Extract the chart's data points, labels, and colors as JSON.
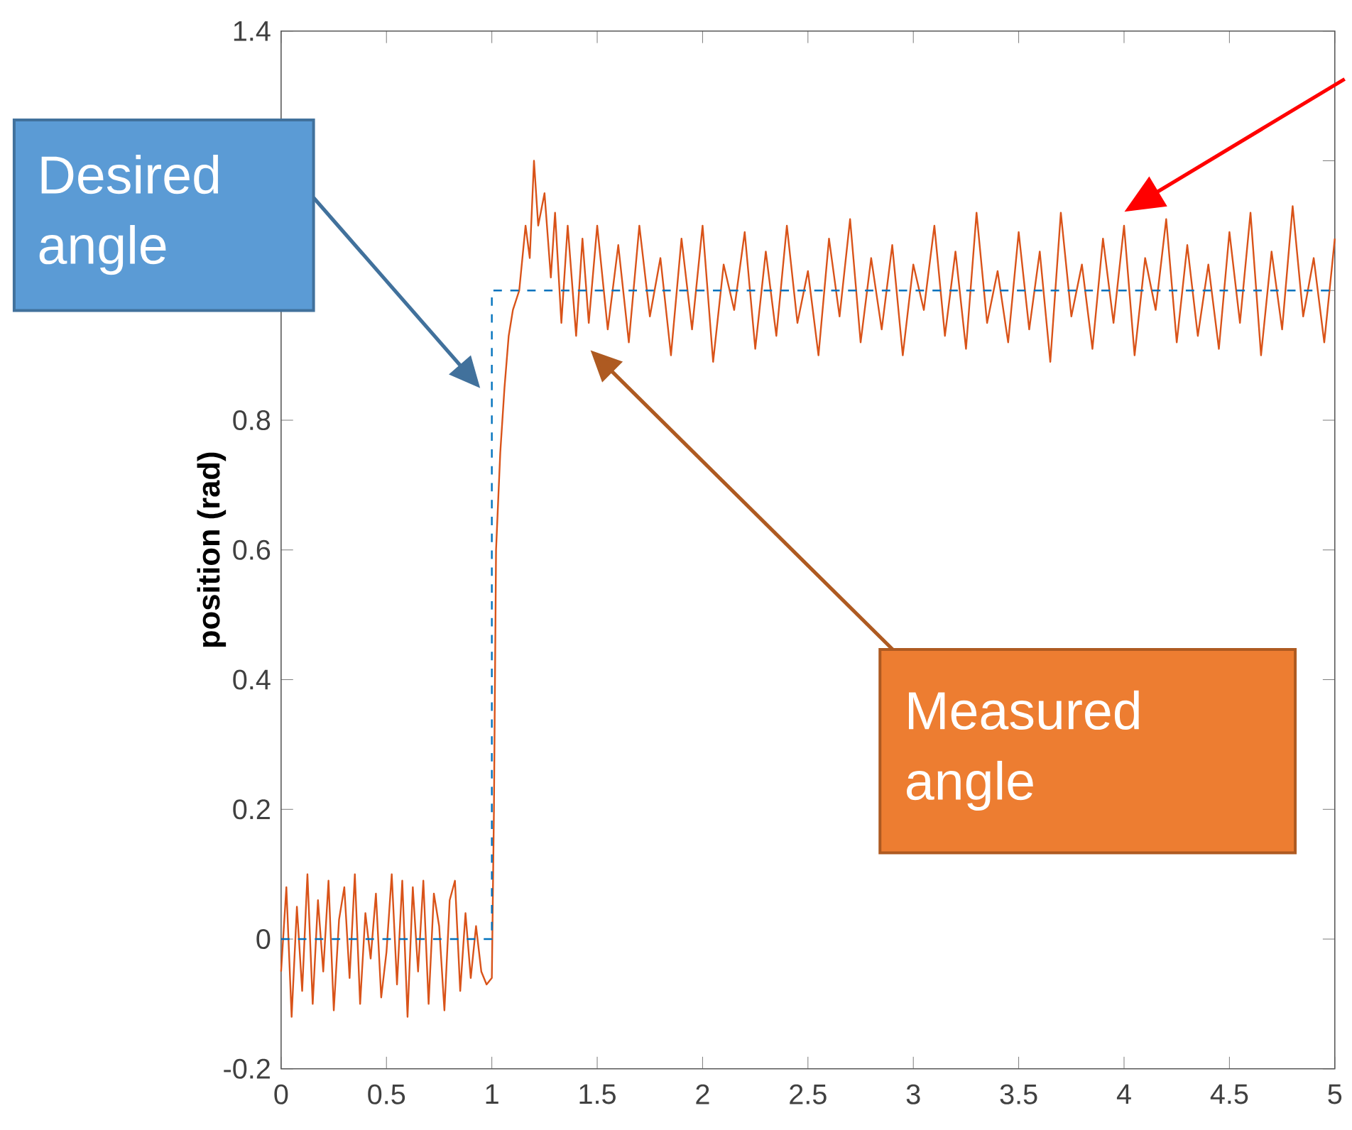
{
  "chart_data": {
    "type": "line",
    "ylabel": "position (rad)",
    "xlim": [
      0,
      5
    ],
    "ylim": [
      -0.2,
      1.4
    ],
    "xticks": [
      0,
      0.5,
      1,
      1.5,
      2,
      2.5,
      3,
      3.5,
      4,
      4.5,
      5
    ],
    "yticks": [
      -0.2,
      0,
      0.2,
      0.4,
      0.6,
      0.8,
      {
        "value": 1,
        "label": null
      },
      {
        "value": 1.2,
        "label": null
      },
      1.4
    ],
    "grid": false,
    "marker": "none",
    "series": [
      {
        "color": "#d95319",
        "line_style": "solid",
        "x": [
          0,
          0.025,
          0.05,
          0.075,
          0.1,
          0.125,
          0.15,
          0.175,
          0.2,
          0.225,
          0.25,
          0.275,
          0.3,
          0.325,
          0.35,
          0.375,
          0.4,
          0.425,
          0.45,
          0.475,
          0.5,
          0.525,
          0.55,
          0.575,
          0.6,
          0.625,
          0.65,
          0.675,
          0.7,
          0.725,
          0.75,
          0.775,
          0.8,
          0.825,
          0.85,
          0.875,
          0.9,
          0.925,
          0.95,
          0.975,
          1.0,
          1.01,
          1.02,
          1.04,
          1.06,
          1.08,
          1.1,
          1.13,
          1.16,
          1.18,
          1.2,
          1.22,
          1.25,
          1.28,
          1.3,
          1.33,
          1.36,
          1.4,
          1.43,
          1.46,
          1.5,
          1.55,
          1.6,
          1.65,
          1.7,
          1.75,
          1.8,
          1.85,
          1.9,
          1.95,
          2.0,
          2.05,
          2.1,
          2.15,
          2.2,
          2.25,
          2.3,
          2.35,
          2.4,
          2.45,
          2.5,
          2.55,
          2.6,
          2.65,
          2.7,
          2.75,
          2.8,
          2.85,
          2.9,
          2.95,
          3.0,
          3.05,
          3.1,
          3.15,
          3.2,
          3.25,
          3.3,
          3.35,
          3.4,
          3.45,
          3.5,
          3.55,
          3.6,
          3.65,
          3.7,
          3.75,
          3.8,
          3.85,
          3.9,
          3.95,
          4.0,
          4.05,
          4.1,
          4.15,
          4.2,
          4.25,
          4.3,
          4.35,
          4.4,
          4.45,
          4.5,
          4.55,
          4.6,
          4.65,
          4.7,
          4.75,
          4.8,
          4.85,
          4.9,
          4.95,
          5.0
        ],
        "values": [
          -0.05,
          0.08,
          -0.12,
          0.05,
          -0.08,
          0.1,
          -0.1,
          0.06,
          -0.05,
          0.09,
          -0.11,
          0.03,
          0.08,
          -0.06,
          0.1,
          -0.1,
          0.04,
          -0.03,
          0.07,
          -0.09,
          -0.02,
          0.1,
          -0.07,
          0.09,
          -0.12,
          0.08,
          -0.05,
          0.09,
          -0.1,
          0.07,
          0.02,
          -0.11,
          0.06,
          0.09,
          -0.08,
          0.04,
          -0.06,
          0.02,
          -0.05,
          -0.07,
          -0.06,
          0.2,
          0.6,
          0.75,
          0.85,
          0.93,
          0.97,
          1.0,
          1.1,
          1.05,
          1.2,
          1.1,
          1.15,
          1.02,
          1.12,
          0.95,
          1.1,
          0.93,
          1.08,
          0.95,
          1.1,
          0.94,
          1.07,
          0.92,
          1.1,
          0.96,
          1.05,
          0.9,
          1.08,
          0.94,
          1.1,
          0.89,
          1.04,
          0.97,
          1.09,
          0.91,
          1.06,
          0.93,
          1.1,
          0.95,
          1.03,
          0.9,
          1.08,
          0.96,
          1.11,
          0.92,
          1.05,
          0.94,
          1.07,
          0.9,
          1.04,
          0.97,
          1.1,
          0.93,
          1.06,
          0.91,
          1.12,
          0.95,
          1.03,
          0.92,
          1.09,
          0.94,
          1.06,
          0.89,
          1.12,
          0.96,
          1.04,
          0.91,
          1.08,
          0.95,
          1.1,
          0.9,
          1.05,
          0.97,
          1.11,
          0.92,
          1.07,
          0.93,
          1.04,
          0.91,
          1.09,
          0.95,
          1.12,
          0.9,
          1.06,
          0.94,
          1.13,
          0.96,
          1.05,
          0.92,
          1.08
        ]
      },
      {
        "color": "#0072bd",
        "line_style": "dashed",
        "x": [
          0,
          1,
          1,
          5
        ],
        "values": [
          0,
          0,
          1,
          1
        ]
      }
    ],
    "annotations": [
      "Desired angle",
      "Measured angle"
    ]
  }
}
